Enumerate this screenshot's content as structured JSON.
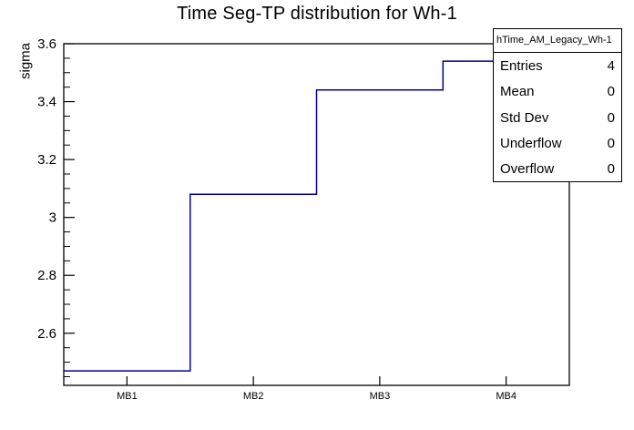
{
  "title": "Time Seg-TP distribution for Wh-1",
  "chart_data": {
    "type": "step-histogram",
    "title": "Time Seg-TP distribution for Wh-1",
    "xlabel": "",
    "ylabel": "sigma",
    "categories": [
      "MB1",
      "MB2",
      "MB3",
      "MB4"
    ],
    "values": [
      2.47,
      3.08,
      3.44,
      3.54
    ],
    "ylim": [
      2.42,
      3.6
    ],
    "y_major_ticks": [
      2.6,
      2.8,
      3,
      3.2,
      3.4,
      3.6
    ],
    "y_tick_labels": [
      "2.6",
      "2.8",
      "3",
      "3.2",
      "3.4",
      "3.6"
    ],
    "y_minor_step": 0.05,
    "grid": false,
    "legend_position": "top-right",
    "line_color": "#000099",
    "frame_color": "#000000",
    "background_color": "#ffffff"
  },
  "stats_box": {
    "header": "hTime_AM_Legacy_Wh-1",
    "rows": [
      {
        "label": "Entries",
        "value": "4"
      },
      {
        "label": "Mean",
        "value": "0"
      },
      {
        "label": "Std Dev",
        "value": "0"
      },
      {
        "label": "Underflow",
        "value": "0"
      },
      {
        "label": "Overflow",
        "value": "0"
      }
    ]
  }
}
